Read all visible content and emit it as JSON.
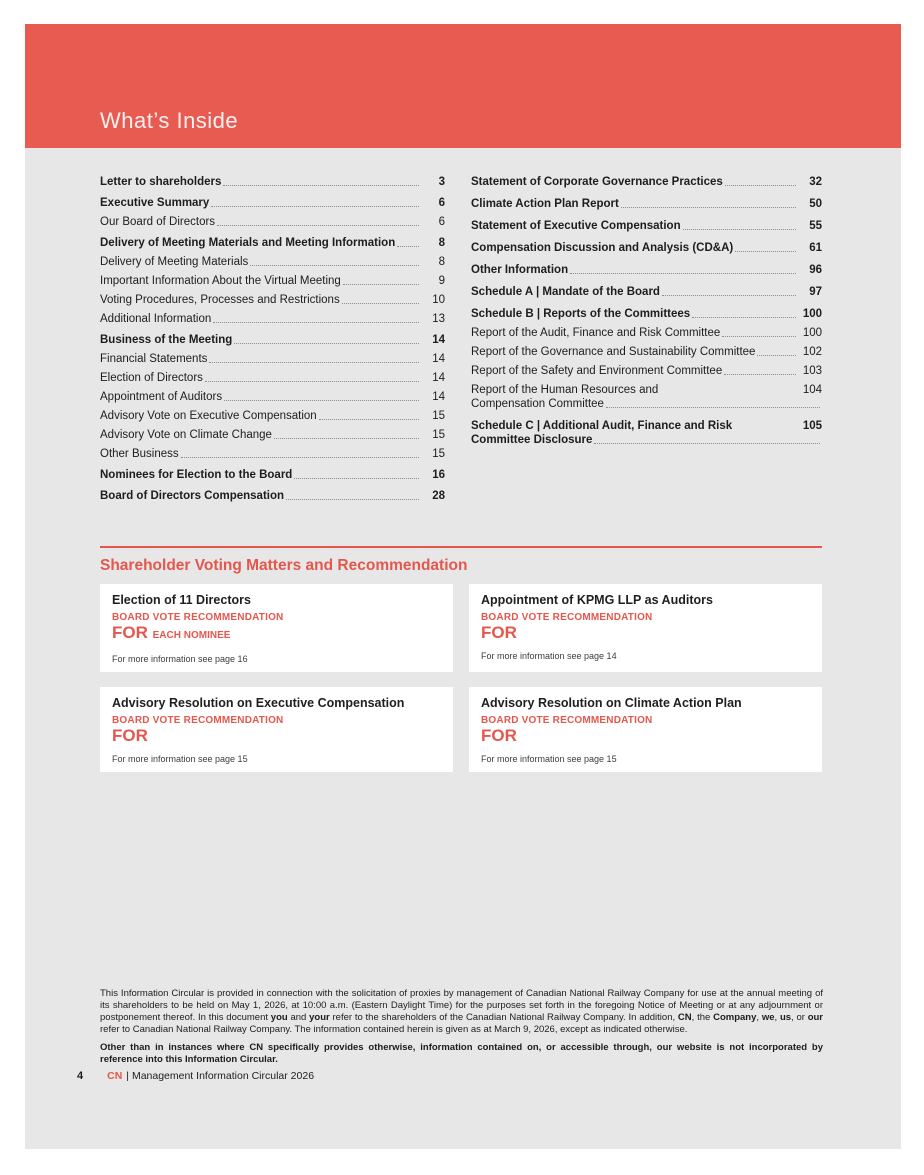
{
  "colors": {
    "accent": "#E4574D",
    "band": "#E85B51",
    "page_bg": "#E7E7E7"
  },
  "header": {
    "title": "What’s Inside"
  },
  "toc": {
    "left_column": [
      {
        "label": "Letter to shareholders",
        "page": "3",
        "bold": true
      },
      {
        "label": "Executive Summary",
        "page": "6",
        "bold": true,
        "gap": true
      },
      {
        "label": "Our Board of Directors",
        "page": "6"
      },
      {
        "label": "Delivery of Meeting Materials and Meeting Information",
        "page": "8",
        "bold": true,
        "gap": true
      },
      {
        "label": "Delivery of Meeting Materials",
        "page": "8"
      },
      {
        "label": "Important Information About the Virtual Meeting",
        "page": "9"
      },
      {
        "label": "Voting Procedures, Processes and Restrictions",
        "page": "10"
      },
      {
        "label": "Additional Information",
        "page": "13"
      },
      {
        "label": "Business of the Meeting",
        "page": "14",
        "bold": true,
        "gap": true
      },
      {
        "label": "Financial Statements",
        "page": "14"
      },
      {
        "label": "Election of Directors",
        "page": "14"
      },
      {
        "label": "Appointment of Auditors",
        "page": "14"
      },
      {
        "label": "Advisory Vote on Executive Compensation",
        "page": "15"
      },
      {
        "label": "Advisory Vote on Climate Change",
        "page": "15"
      },
      {
        "label": "Other Business",
        "page": "15"
      },
      {
        "label": "Nominees for Election to the Board",
        "page": "16",
        "bold": true,
        "gap": true
      },
      {
        "label": "Board of Directors Compensation",
        "page": "28",
        "bold": true,
        "gap": true
      }
    ],
    "right_column": [
      {
        "label": "Statement of Corporate Governance Practices",
        "page": "32",
        "bold": true
      },
      {
        "label": "Climate Action Plan Report",
        "page": "50",
        "bold": true,
        "gap": true
      },
      {
        "label": "Statement of Executive Compensation",
        "page": "55",
        "bold": true,
        "gap": true
      },
      {
        "label": "Compensation Discussion and Analysis (CD&A)",
        "page": "61",
        "bold": true,
        "gap": true
      },
      {
        "label": "Other Information",
        "page": "96",
        "bold": true,
        "gap": true
      },
      {
        "label": "Schedule A | Mandate of the Board",
        "page": "97",
        "bold": true,
        "gap": true
      },
      {
        "label": "Schedule B | Reports of the Committees",
        "page": "100",
        "bold": true,
        "gap": true
      },
      {
        "label": "Report of the Audit, Finance and Risk Committee",
        "page": "100"
      },
      {
        "label": "Report of the Governance and Sustainability Committee",
        "page": "102"
      },
      {
        "label": "Report of the Safety and Environment Committee",
        "page": "103"
      },
      {
        "label": "Report of the Human Resources and",
        "label2": "Compensation Committee",
        "page": "104"
      },
      {
        "label": "Schedule C | Additional Audit, Finance and Risk",
        "label2": "Committee Disclosure",
        "page": "105",
        "bold": true,
        "gap": true
      }
    ]
  },
  "voting_section": {
    "title": "Shareholder Voting Matters and Recommendation",
    "cards": [
      {
        "title": "Election of 11 Directors",
        "recommendation_label": "BOARD VOTE RECOMMENDATION",
        "vote": "FOR",
        "vote_suffix": "EACH NOMINEE",
        "more_info": "For more information see page 16"
      },
      {
        "title": "Appointment of KPMG LLP as Auditors",
        "recommendation_label": "BOARD VOTE RECOMMENDATION",
        "vote": "FOR",
        "vote_suffix": "",
        "more_info": "For more information see page 14"
      },
      {
        "title": "Advisory Resolution on Executive Compensation",
        "recommendation_label": "BOARD VOTE RECOMMENDATION",
        "vote": "FOR",
        "vote_suffix": "",
        "more_info": "For more information see page 15"
      },
      {
        "title": "Advisory Resolution on Climate Action Plan",
        "recommendation_label": "BOARD VOTE RECOMMENDATION",
        "vote": "FOR",
        "vote_suffix": "",
        "more_info": "For more information see page 15"
      }
    ]
  },
  "footer": {
    "disclaimer_segments": [
      {
        "text": "This Information Circular is provided in connection with the solicitation of proxies by management of Canadian National Railway Company for use at the annual meeting of its shareholders to be held on May 1, 2026, at 10:00 a.m. (Eastern Daylight Time) for the purposes set forth in the foregoing Notice of Meeting or at any adjournment or postponement thereof. In this document "
      },
      {
        "text": "you",
        "bold": true
      },
      {
        "text": " and "
      },
      {
        "text": "your",
        "bold": true
      },
      {
        "text": " refer to the shareholders of the Canadian National Railway Company. In addition, "
      },
      {
        "text": "CN",
        "bold": true
      },
      {
        "text": ", the "
      },
      {
        "text": "Company",
        "bold": true
      },
      {
        "text": ", "
      },
      {
        "text": "we",
        "bold": true
      },
      {
        "text": ", "
      },
      {
        "text": "us",
        "bold": true
      },
      {
        "text": ", or "
      },
      {
        "text": "our",
        "bold": true
      },
      {
        "text": " refer to Canadian National Railway Company. The information contained herein is given as at March 9, 2026, except as indicated otherwise."
      }
    ],
    "bold_note": "Other than in instances where CN specifically provides otherwise, information contained on, or accessible through, our website is not incorporated by reference into this Information Circular.",
    "page_number": "4",
    "brand": "CN",
    "doc_title": "| Management Information Circular 2026"
  }
}
